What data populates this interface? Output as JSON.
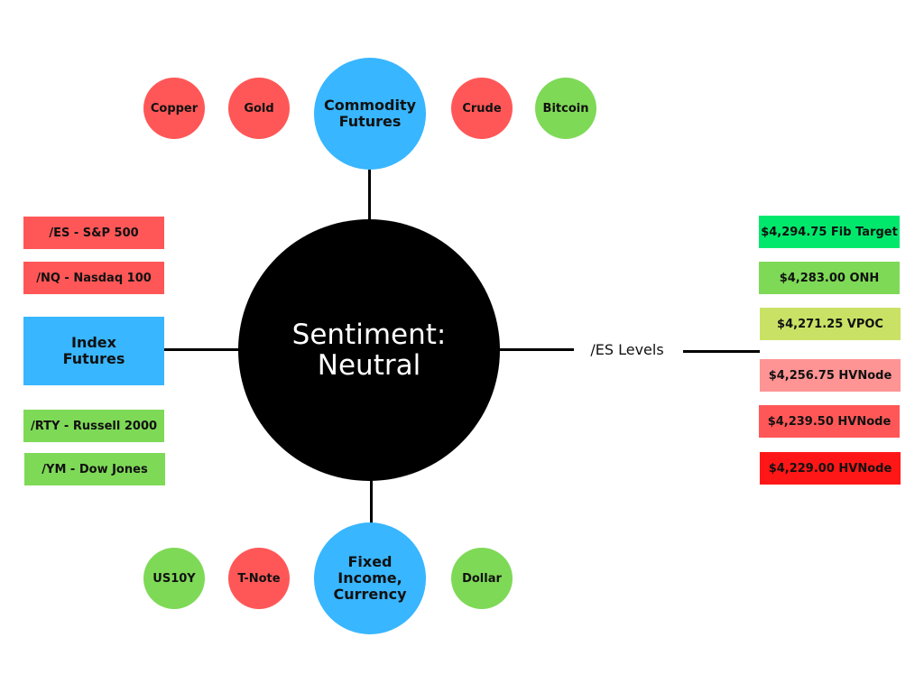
{
  "center": {
    "line1": "Sentiment:",
    "line2": "Neutral"
  },
  "commodity": {
    "hub_line1": "Commodity",
    "hub_line2": "Futures",
    "items": [
      {
        "label": "Copper",
        "color": "#ff5757"
      },
      {
        "label": "Gold",
        "color": "#ff5757"
      },
      {
        "label": "Crude",
        "color": "#ff5757"
      },
      {
        "label": "Bitcoin",
        "color": "#7ed957"
      }
    ]
  },
  "fixed_income": {
    "hub_line1": "Fixed",
    "hub_line2": "Income,",
    "hub_line3": "Currency",
    "items": [
      {
        "label": "US10Y",
        "color": "#7ed957"
      },
      {
        "label": "T-Note",
        "color": "#ff5757"
      },
      {
        "label": "Dollar",
        "color": "#7ed957"
      }
    ]
  },
  "index_futures": {
    "hub_line1": "Index",
    "hub_line2": "Futures",
    "items": [
      {
        "label": "/ES - S&P 500",
        "color": "#ff5757"
      },
      {
        "label": "/NQ - Nasdaq 100",
        "color": "#ff5757"
      },
      {
        "label": "/RTY - Russell 2000",
        "color": "#7ed957"
      },
      {
        "label": "/YM - Dow Jones",
        "color": "#7ed957"
      }
    ]
  },
  "es_levels": {
    "title": "/ES Levels",
    "items": [
      {
        "label": "$4,294.75 Fib Target",
        "color": "#00e86c"
      },
      {
        "label": "$4,283.00 ONH",
        "color": "#7ed957"
      },
      {
        "label": "$4,271.25 VPOC",
        "color": "#c9e265"
      },
      {
        "label": "$4,256.75 HVNode",
        "color": "#ff9494"
      },
      {
        "label": "$4,239.50 HVNode",
        "color": "#ff5757"
      },
      {
        "label": "$4,229.00 HVNode",
        "color": "#ff1616"
      }
    ]
  }
}
